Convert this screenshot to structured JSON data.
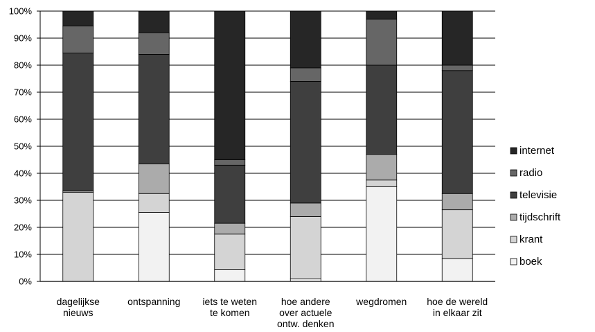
{
  "chart_data": {
    "type": "bar",
    "stacked": true,
    "stacked_percent": true,
    "title": "",
    "xlabel": "",
    "ylabel": "",
    "ylim": [
      0,
      100
    ],
    "grid": true,
    "legend_position": "right",
    "y_ticks": [
      "0%",
      "10%",
      "20%",
      "30%",
      "40%",
      "50%",
      "60%",
      "70%",
      "80%",
      "90%",
      "100%"
    ],
    "categories": [
      [
        "dagelijkse",
        "nieuws"
      ],
      [
        "ontspanning"
      ],
      [
        "iets te weten",
        "te komen"
      ],
      [
        "hoe andere",
        "over actuele",
        "ontw. denken"
      ],
      [
        "wegdromen"
      ],
      [
        "hoe de wereld",
        "in elkaar zit"
      ]
    ],
    "series": [
      {
        "name": "boek",
        "color": "#f2f2f2",
        "values": [
          0,
          25.5,
          4.5,
          1,
          35,
          8.5
        ]
      },
      {
        "name": "krant",
        "color": "#d4d4d4",
        "values": [
          33,
          7,
          13,
          23,
          2.5,
          18
        ]
      },
      {
        "name": "tijdschrift",
        "color": "#ababab",
        "values": [
          0.5,
          11,
          4,
          5,
          9.5,
          6
        ]
      },
      {
        "name": "televisie",
        "color": "#3f3f3f",
        "values": [
          51,
          40.5,
          21.5,
          45,
          33,
          45.5
        ]
      },
      {
        "name": "radio",
        "color": "#666666",
        "values": [
          10,
          8,
          2,
          5,
          17,
          2
        ]
      },
      {
        "name": "internet",
        "color": "#262626",
        "values": [
          5.5,
          8,
          55,
          21,
          3,
          20
        ]
      }
    ]
  }
}
